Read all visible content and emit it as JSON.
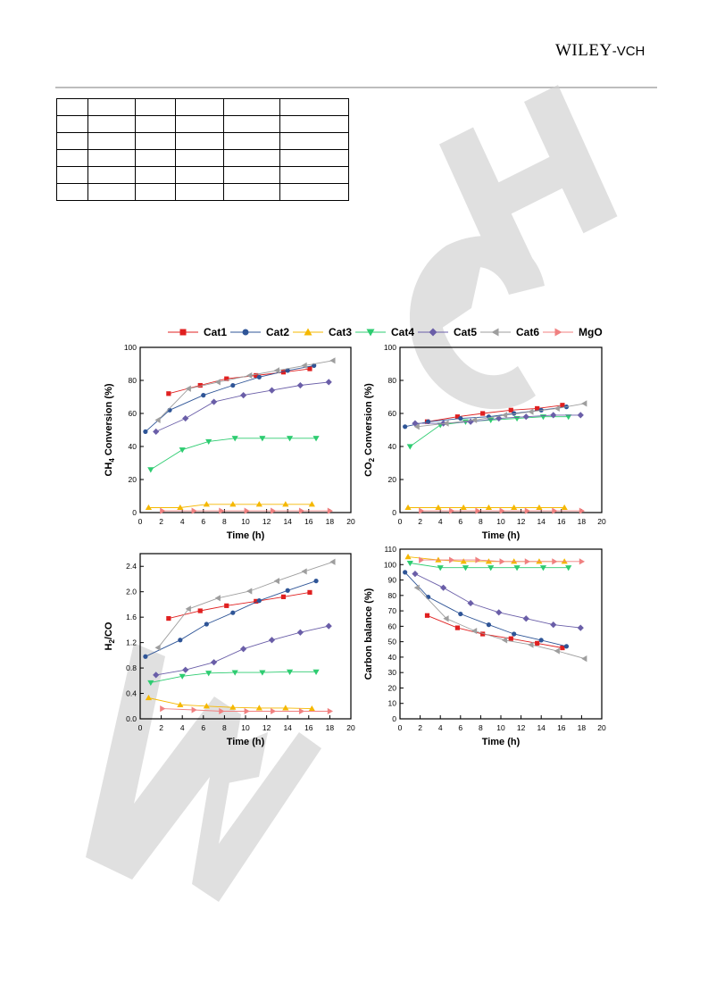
{
  "header": {
    "logo_main": "WILEY",
    "logo_suffix": "-VCH",
    "logo_color": "#111111"
  },
  "table": {
    "rows": 6,
    "cols": 6
  },
  "watermark": {
    "color": "#cfcfcf"
  },
  "legend": [
    {
      "name": "Cat1",
      "color": "#e02020",
      "marker": "square"
    },
    {
      "name": "Cat2",
      "color": "#2f5597",
      "marker": "circle"
    },
    {
      "name": "Cat3",
      "color": "#f5b800",
      "marker": "triangle-up"
    },
    {
      "name": "Cat4",
      "color": "#2ecc71",
      "marker": "triangle-down"
    },
    {
      "name": "Cat5",
      "color": "#6a5ea8",
      "marker": "diamond"
    },
    {
      "name": "Cat6",
      "color": "#9e9e9e",
      "marker": "triangle-left"
    },
    {
      "name": "MgO",
      "color": "#f08080",
      "marker": "triangle-right"
    }
  ],
  "chart_data": [
    {
      "type": "line",
      "ylabel": "CH4 Conversion (%)",
      "xlabel": "Time (h)",
      "xlim": [
        0,
        20
      ],
      "ylim": [
        0,
        100
      ],
      "xticks": [
        0,
        2,
        4,
        6,
        8,
        10,
        12,
        14,
        16,
        18,
        20
      ],
      "yticks": [
        0,
        20,
        40,
        60,
        80,
        100
      ],
      "series": [
        {
          "name": "Cat1",
          "x": [
            2.7,
            5.7,
            8.2,
            11,
            13.6,
            16.1
          ],
          "y": [
            72,
            77,
            81,
            83,
            85,
            87
          ]
        },
        {
          "name": "Cat2",
          "x": [
            0.5,
            2.8,
            6,
            8.8,
            11.3,
            14,
            16.5
          ],
          "y": [
            49,
            62,
            71,
            77,
            82,
            86,
            89
          ]
        },
        {
          "name": "Cat3",
          "x": [
            0.8,
            3.8,
            6.3,
            8.8,
            11.3,
            13.8,
            16.3
          ],
          "y": [
            3,
            3,
            5,
            5,
            5,
            5,
            5
          ]
        },
        {
          "name": "Cat4",
          "x": [
            1,
            4,
            6.5,
            9,
            11.6,
            14.2,
            16.7
          ],
          "y": [
            26,
            38,
            43,
            45,
            45,
            45,
            45
          ]
        },
        {
          "name": "Cat5",
          "x": [
            1.5,
            4.3,
            7,
            9.8,
            12.5,
            15.2,
            17.9
          ],
          "y": [
            49,
            57,
            67,
            71,
            74,
            77,
            79
          ]
        },
        {
          "name": "Cat6",
          "x": [
            1.7,
            4.6,
            7.4,
            10.4,
            13,
            15.6,
            18.3
          ],
          "y": [
            56,
            75,
            79,
            83,
            86,
            89,
            92
          ]
        },
        {
          "name": "MgO",
          "x": [
            2.1,
            5.1,
            7.7,
            10.1,
            12.6,
            15.3,
            18
          ],
          "y": [
            1,
            1,
            1,
            1,
            1,
            1,
            1
          ]
        }
      ]
    },
    {
      "type": "line",
      "ylabel": "CO2 Conversion (%)",
      "xlabel": "Time (h)",
      "xlim": [
        0,
        20
      ],
      "ylim": [
        0,
        100
      ],
      "xticks": [
        0,
        2,
        4,
        6,
        8,
        10,
        12,
        14,
        16,
        18,
        20
      ],
      "yticks": [
        0,
        20,
        40,
        60,
        80,
        100
      ],
      "series": [
        {
          "name": "Cat1",
          "x": [
            2.7,
            5.7,
            8.2,
            11,
            13.6,
            16.1
          ],
          "y": [
            55,
            58,
            60,
            62,
            63,
            65
          ]
        },
        {
          "name": "Cat2",
          "x": [
            0.5,
            2.8,
            6,
            8.8,
            11.3,
            14,
            16.5
          ],
          "y": [
            52,
            55,
            57,
            58,
            60,
            62,
            64
          ]
        },
        {
          "name": "Cat3",
          "x": [
            0.8,
            3.8,
            6.3,
            8.8,
            11.3,
            13.8,
            16.3
          ],
          "y": [
            3,
            3,
            3,
            3,
            3,
            3,
            3
          ]
        },
        {
          "name": "Cat4",
          "x": [
            1,
            4,
            6.5,
            9,
            11.6,
            14.2,
            16.7
          ],
          "y": [
            40,
            53,
            55,
            56,
            57,
            58,
            58
          ]
        },
        {
          "name": "Cat5",
          "x": [
            1.5,
            4.3,
            7,
            9.8,
            12.5,
            15.2,
            17.9
          ],
          "y": [
            54,
            54,
            55,
            57,
            58,
            59,
            59
          ]
        },
        {
          "name": "Cat6",
          "x": [
            1.7,
            4.6,
            7.4,
            10.4,
            13,
            15.6,
            18.3
          ],
          "y": [
            52,
            54,
            56,
            59,
            61,
            63,
            66
          ]
        },
        {
          "name": "MgO",
          "x": [
            2.1,
            5.1,
            7.7,
            10.1,
            12.6,
            15.3,
            18
          ],
          "y": [
            1,
            1,
            1,
            1,
            1,
            1,
            1
          ]
        }
      ]
    },
    {
      "type": "line",
      "ylabel": "H2/CO",
      "xlabel": "Time (h)",
      "xlim": [
        0,
        20
      ],
      "ylim": [
        0,
        2.6
      ],
      "xticks": [
        0,
        2,
        4,
        6,
        8,
        10,
        12,
        14,
        16,
        18,
        20
      ],
      "yticks": [
        0.0,
        0.4,
        0.8,
        1.2,
        1.6,
        2.0,
        2.4
      ],
      "series": [
        {
          "name": "Cat1",
          "x": [
            2.7,
            5.7,
            8.2,
            11,
            13.6,
            16.1
          ],
          "y": [
            1.58,
            1.7,
            1.78,
            1.85,
            1.92,
            1.99
          ]
        },
        {
          "name": "Cat2",
          "x": [
            0.5,
            3.8,
            6.3,
            8.8,
            11.3,
            14,
            16.7
          ],
          "y": [
            0.98,
            1.24,
            1.49,
            1.67,
            1.86,
            2.02,
            2.17
          ]
        },
        {
          "name": "Cat3",
          "x": [
            0.8,
            3.8,
            6.3,
            8.8,
            11.3,
            13.8,
            16.3
          ],
          "y": [
            0.33,
            0.22,
            0.2,
            0.18,
            0.17,
            0.17,
            0.16
          ]
        },
        {
          "name": "Cat4",
          "x": [
            1,
            4,
            6.5,
            9,
            11.6,
            14.2,
            16.7
          ],
          "y": [
            0.57,
            0.67,
            0.72,
            0.73,
            0.73,
            0.74,
            0.74
          ]
        },
        {
          "name": "Cat5",
          "x": [
            1.5,
            4.3,
            7,
            9.8,
            12.5,
            15.2,
            17.9
          ],
          "y": [
            0.69,
            0.77,
            0.89,
            1.1,
            1.24,
            1.36,
            1.46
          ]
        },
        {
          "name": "Cat6",
          "x": [
            1.7,
            4.6,
            7.4,
            10.4,
            13,
            15.6,
            18.3
          ],
          "y": [
            1.12,
            1.73,
            1.9,
            2.01,
            2.17,
            2.32,
            2.47
          ]
        },
        {
          "name": "MgO",
          "x": [
            2.1,
            5.1,
            7.7,
            10.1,
            12.6,
            15.3,
            18
          ],
          "y": [
            0.16,
            0.14,
            0.12,
            0.12,
            0.12,
            0.12,
            0.12
          ]
        }
      ]
    },
    {
      "type": "line",
      "ylabel": "Carbon balance (%)",
      "xlabel": "Time (h)",
      "xlim": [
        0,
        20
      ],
      "ylim": [
        0,
        110
      ],
      "xticks": [
        0,
        2,
        4,
        6,
        8,
        10,
        12,
        14,
        16,
        18,
        20
      ],
      "yticks": [
        0,
        10,
        20,
        30,
        40,
        50,
        60,
        70,
        80,
        90,
        100,
        110
      ],
      "series": [
        {
          "name": "Cat1",
          "x": [
            2.7,
            5.7,
            8.2,
            11,
            13.6,
            16.1
          ],
          "y": [
            67,
            59,
            55,
            52,
            49,
            46
          ]
        },
        {
          "name": "Cat2",
          "x": [
            0.5,
            2.8,
            6,
            8.8,
            11.3,
            14,
            16.5
          ],
          "y": [
            95,
            79,
            68,
            61,
            55,
            51,
            47
          ]
        },
        {
          "name": "Cat3",
          "x": [
            0.8,
            3.8,
            6.3,
            8.8,
            11.3,
            13.8,
            16.3
          ],
          "y": [
            105,
            103,
            102,
            102,
            102,
            102,
            102
          ]
        },
        {
          "name": "Cat4",
          "x": [
            1,
            4,
            6.5,
            9,
            11.6,
            14.2,
            16.7
          ],
          "y": [
            101,
            98,
            98,
            98,
            98,
            98,
            98
          ]
        },
        {
          "name": "Cat5",
          "x": [
            1.5,
            4.3,
            7,
            9.8,
            12.5,
            15.2,
            17.9
          ],
          "y": [
            94,
            85,
            75,
            69,
            65,
            61,
            59
          ]
        },
        {
          "name": "Cat6",
          "x": [
            1.7,
            4.6,
            7.4,
            10.4,
            13,
            15.6,
            18.3
          ],
          "y": [
            85,
            65,
            57,
            51,
            48,
            44,
            39
          ]
        },
        {
          "name": "MgO",
          "x": [
            2.1,
            5.1,
            7.7,
            10.1,
            12.6,
            15.3,
            18
          ],
          "y": [
            103,
            103,
            103,
            102,
            102,
            102,
            102
          ]
        }
      ]
    }
  ]
}
